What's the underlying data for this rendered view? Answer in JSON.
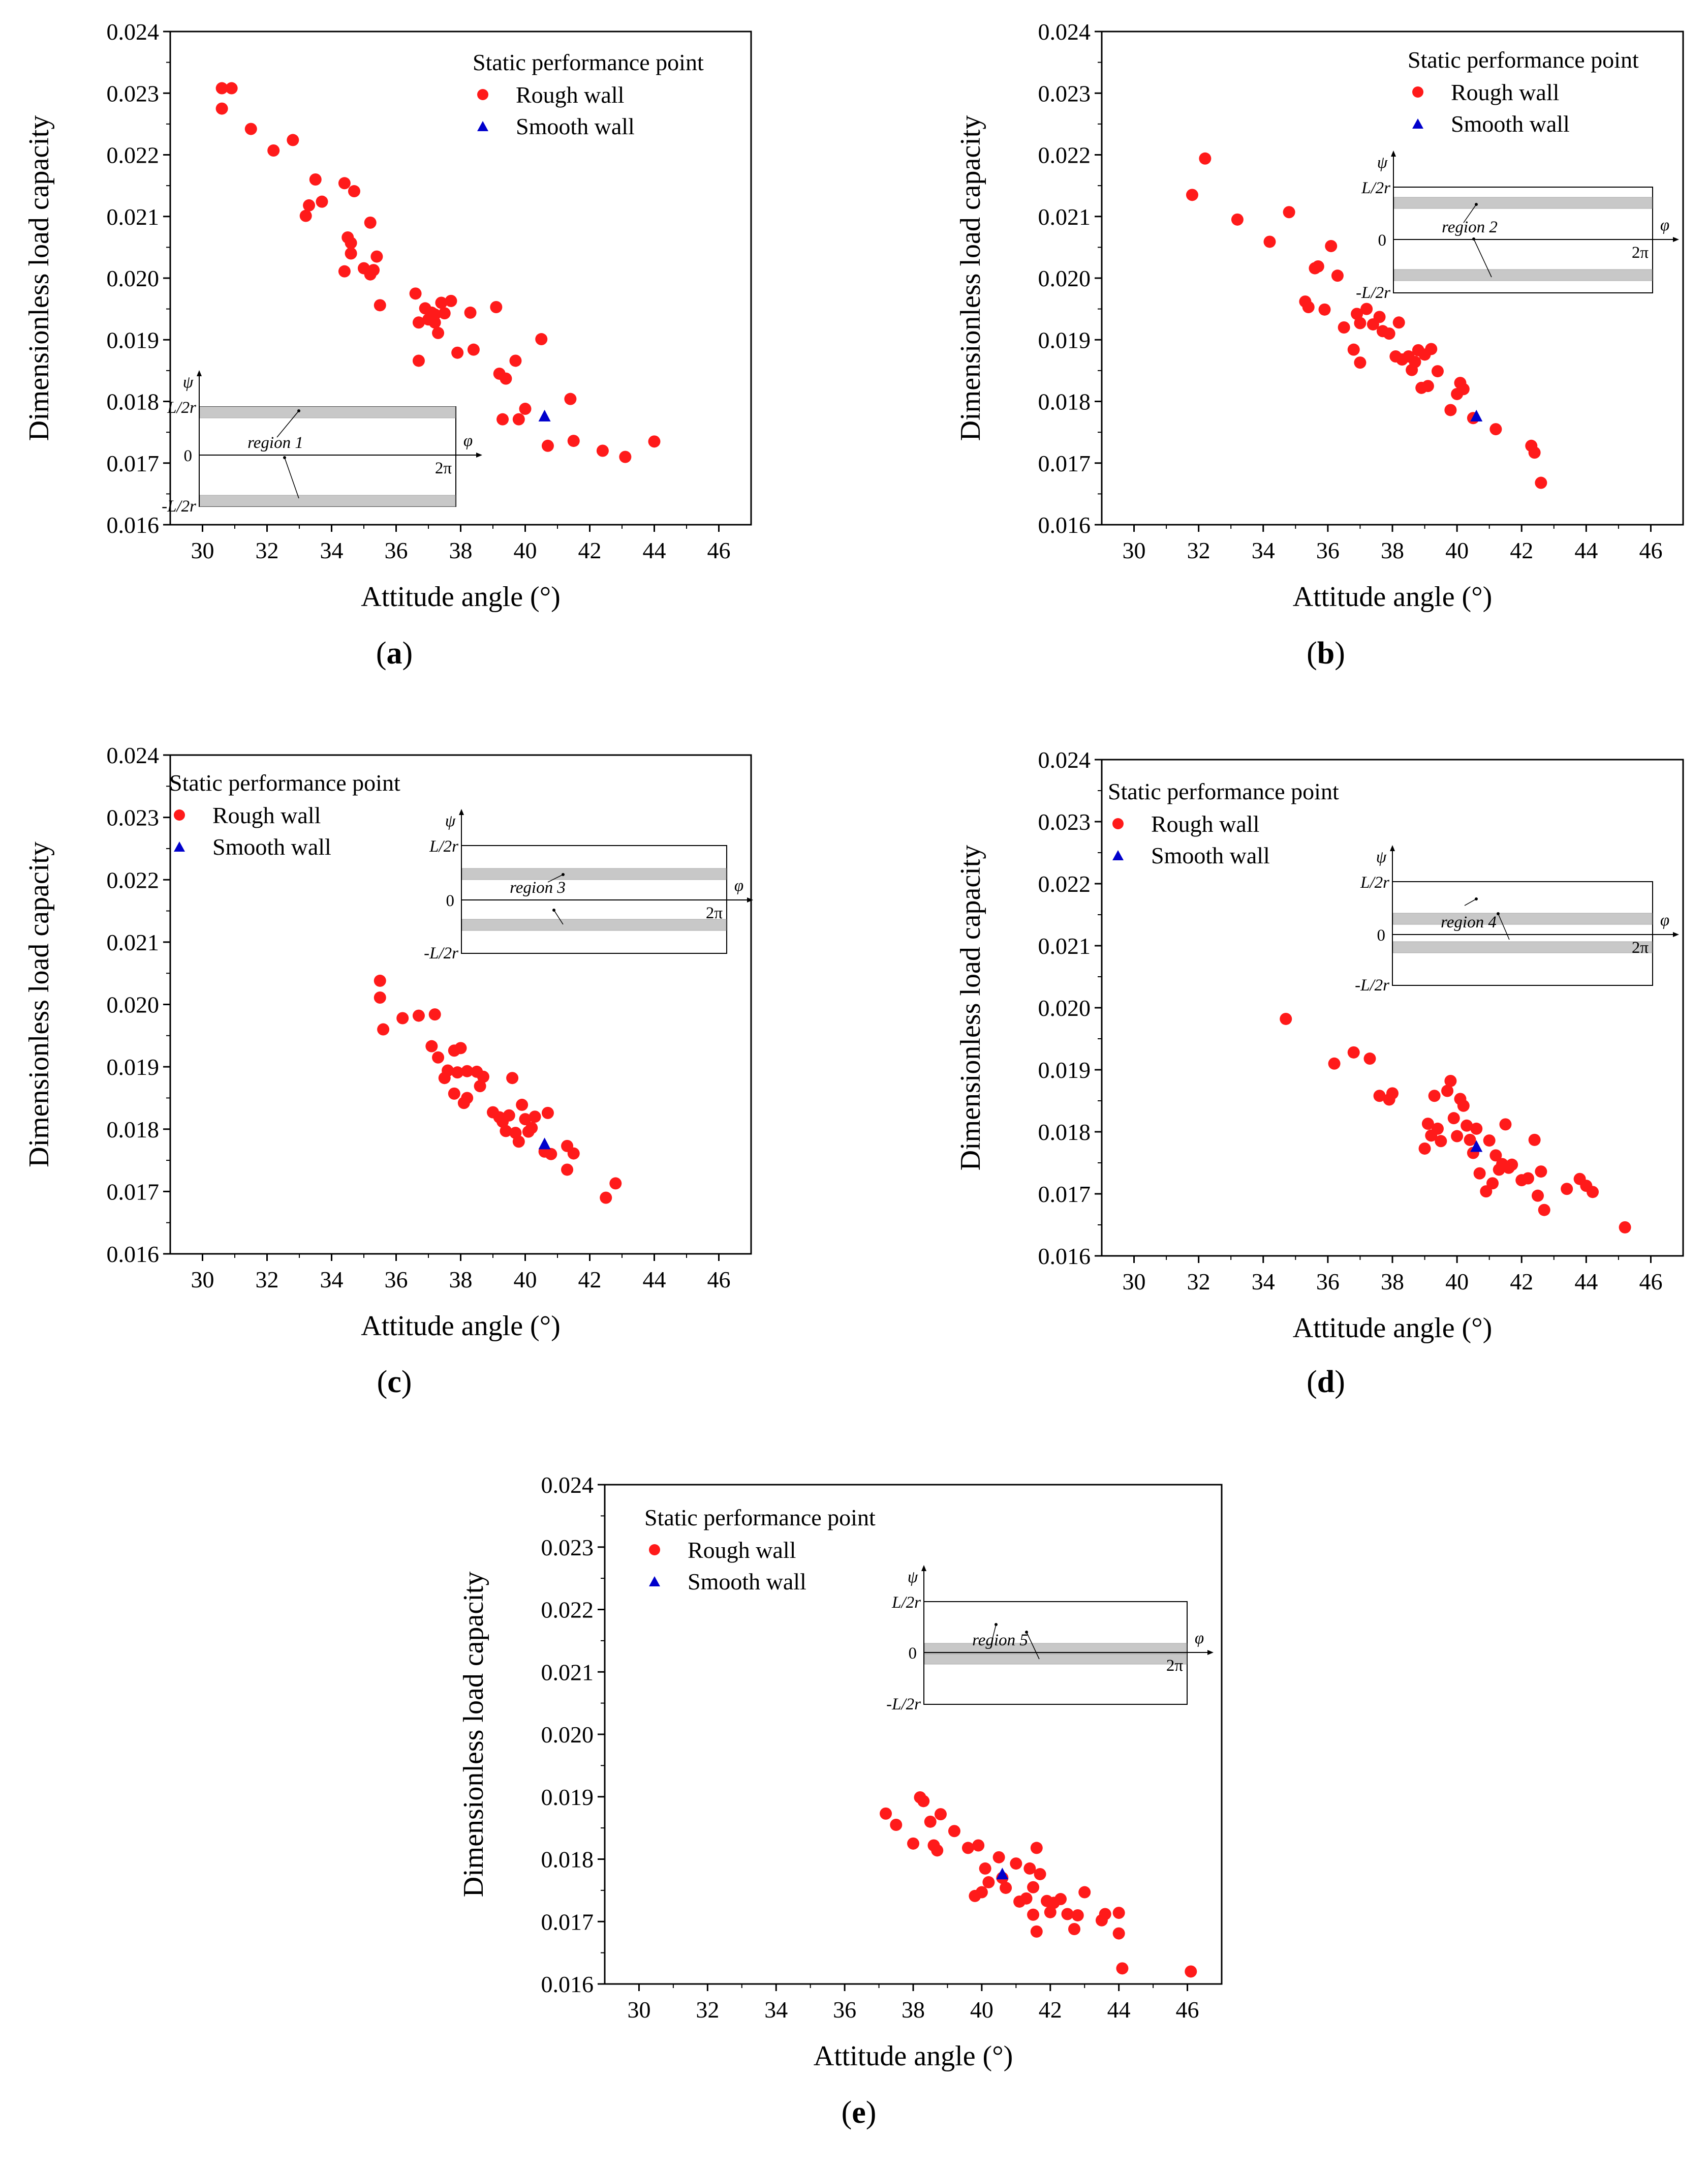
{
  "figure": {
    "xlabel": "Attitude angle (°)",
    "ylabel": "Dimensionless load capacity",
    "xticks": [
      30,
      32,
      34,
      36,
      38,
      40,
      42,
      44,
      46
    ],
    "yticks": [
      "0.016",
      "0.017",
      "0.018",
      "0.019",
      "0.020",
      "0.021",
      "0.022",
      "0.023",
      "0.024"
    ],
    "legend": {
      "title": "Static performance point",
      "rough": "Rough wall",
      "smooth": "Smooth wall"
    },
    "inset_labels": {
      "psi": "ψ",
      "phi": "φ",
      "top": "L/2r",
      "zero": "0",
      "bottom": "-L/2r",
      "two_pi": "2π"
    },
    "colors": {
      "rough": "#ff1a1a",
      "smooth": "#0000cc",
      "band": "#c8c8c8",
      "axis": "#000000"
    }
  },
  "chart_data": [
    {
      "type": "scatter",
      "panel": "(a)",
      "sublabel_letter": "a",
      "region_label": "region 1",
      "xlim": [
        29,
        47
      ],
      "ylim": [
        0.016,
        0.024
      ],
      "series": [
        {
          "name": "Rough wall",
          "points": [
            [
              30.6,
              0.02308
            ],
            [
              30.6,
              0.02275
            ],
            [
              30.9,
              0.02308
            ],
            [
              31.5,
              0.02242
            ],
            [
              32.2,
              0.02207
            ],
            [
              32.8,
              0.02224
            ],
            [
              33.2,
              0.02101
            ],
            [
              33.3,
              0.02118
            ],
            [
              33.5,
              0.0216
            ],
            [
              33.7,
              0.02124
            ],
            [
              34.4,
              0.02154
            ],
            [
              34.4,
              0.02011
            ],
            [
              34.5,
              0.02066
            ],
            [
              34.6,
              0.0204
            ],
            [
              34.6,
              0.02057
            ],
            [
              34.7,
              0.02141
            ],
            [
              35.0,
              0.02016
            ],
            [
              35.2,
              0.0209
            ],
            [
              35.2,
              0.02006
            ],
            [
              35.3,
              0.02013
            ],
            [
              35.4,
              0.02035
            ],
            [
              35.5,
              0.01956
            ],
            [
              36.6,
              0.01975
            ],
            [
              36.7,
              0.01928
            ],
            [
              36.7,
              0.01866
            ],
            [
              36.9,
              0.01951
            ],
            [
              37.0,
              0.01933
            ],
            [
              37.1,
              0.01944
            ],
            [
              37.2,
              0.01941
            ],
            [
              37.2,
              0.01928
            ],
            [
              37.3,
              0.01911
            ],
            [
              37.4,
              0.0196
            ],
            [
              37.5,
              0.01943
            ],
            [
              37.7,
              0.01963
            ],
            [
              37.9,
              0.01879
            ],
            [
              38.3,
              0.01944
            ],
            [
              38.4,
              0.01884
            ],
            [
              39.1,
              0.01953
            ],
            [
              39.2,
              0.01845
            ],
            [
              39.3,
              0.01771
            ],
            [
              39.4,
              0.01837
            ],
            [
              39.7,
              0.01866
            ],
            [
              39.8,
              0.01771
            ],
            [
              40.0,
              0.01788
            ],
            [
              40.5,
              0.01901
            ],
            [
              40.7,
              0.01728
            ],
            [
              41.4,
              0.01804
            ],
            [
              41.5,
              0.01736
            ],
            [
              42.4,
              0.0172
            ],
            [
              43.1,
              0.0171
            ],
            [
              44.0,
              0.01735
            ]
          ]
        },
        {
          "name": "Smooth wall",
          "points": [
            [
              40.6,
              0.01775
            ]
          ]
        }
      ]
    },
    {
      "type": "scatter",
      "panel": "(b)",
      "sublabel_letter": "b",
      "region_label": "region 2",
      "xlim": [
        29,
        47
      ],
      "ylim": [
        0.016,
        0.024
      ],
      "series": [
        {
          "name": "Rough wall",
          "points": [
            [
              31.8,
              0.02135
            ],
            [
              32.2,
              0.02194
            ],
            [
              33.2,
              0.02095
            ],
            [
              34.2,
              0.02059
            ],
            [
              34.8,
              0.02107
            ],
            [
              35.3,
              0.01962
            ],
            [
              35.4,
              0.01953
            ],
            [
              35.6,
              0.02016
            ],
            [
              35.7,
              0.02019
            ],
            [
              35.9,
              0.01949
            ],
            [
              36.1,
              0.02052
            ],
            [
              36.3,
              0.02004
            ],
            [
              36.5,
              0.0192
            ],
            [
              36.8,
              0.01884
            ],
            [
              36.9,
              0.01942
            ],
            [
              37.0,
              0.01927
            ],
            [
              37.0,
              0.01863
            ],
            [
              37.2,
              0.0195
            ],
            [
              37.4,
              0.01925
            ],
            [
              37.6,
              0.01937
            ],
            [
              37.7,
              0.01914
            ],
            [
              37.9,
              0.0191
            ],
            [
              38.1,
              0.01873
            ],
            [
              38.2,
              0.01928
            ],
            [
              38.3,
              0.01868
            ],
            [
              38.5,
              0.01873
            ],
            [
              38.6,
              0.01851
            ],
            [
              38.7,
              0.01864
            ],
            [
              38.8,
              0.01883
            ],
            [
              38.9,
              0.01822
            ],
            [
              39.0,
              0.01876
            ],
            [
              39.1,
              0.01825
            ],
            [
              39.2,
              0.01885
            ],
            [
              39.4,
              0.01849
            ],
            [
              39.8,
              0.01786
            ],
            [
              40.0,
              0.01812
            ],
            [
              40.1,
              0.0183
            ],
            [
              40.2,
              0.0182
            ],
            [
              40.5,
              0.01773
            ],
            [
              41.2,
              0.01755
            ],
            [
              42.3,
              0.01728
            ],
            [
              42.4,
              0.01717
            ],
            [
              42.6,
              0.01668
            ]
          ]
        },
        {
          "name": "Smooth wall",
          "points": [
            [
              40.6,
              0.01775
            ]
          ]
        }
      ]
    },
    {
      "type": "scatter",
      "panel": "(c)",
      "sublabel_letter": "c",
      "region_label": "region 3",
      "xlim": [
        29,
        47
      ],
      "ylim": [
        0.016,
        0.024
      ],
      "series": [
        {
          "name": "Rough wall",
          "points": [
            [
              35.5,
              0.02038
            ],
            [
              35.5,
              0.02011
            ],
            [
              35.6,
              0.0196
            ],
            [
              36.2,
              0.01978
            ],
            [
              36.7,
              0.01982
            ],
            [
              37.1,
              0.01933
            ],
            [
              37.2,
              0.01984
            ],
            [
              37.3,
              0.01915
            ],
            [
              37.5,
              0.01882
            ],
            [
              37.6,
              0.01894
            ],
            [
              37.8,
              0.01926
            ],
            [
              37.8,
              0.01857
            ],
            [
              37.9,
              0.01891
            ],
            [
              38.0,
              0.0193
            ],
            [
              38.1,
              0.01842
            ],
            [
              38.2,
              0.0185
            ],
            [
              38.2,
              0.01893
            ],
            [
              38.5,
              0.01892
            ],
            [
              38.6,
              0.01869
            ],
            [
              38.7,
              0.01884
            ],
            [
              39.0,
              0.01827
            ],
            [
              39.2,
              0.01819
            ],
            [
              39.3,
              0.01812
            ],
            [
              39.4,
              0.01797
            ],
            [
              39.5,
              0.01822
            ],
            [
              39.6,
              0.01882
            ],
            [
              39.7,
              0.01794
            ],
            [
              39.8,
              0.0178
            ],
            [
              39.9,
              0.01839
            ],
            [
              40.0,
              0.01816
            ],
            [
              40.1,
              0.01796
            ],
            [
              40.2,
              0.01802
            ],
            [
              40.3,
              0.0182
            ],
            [
              40.6,
              0.01764
            ],
            [
              40.7,
              0.01826
            ],
            [
              40.8,
              0.0176
            ],
            [
              41.3,
              0.01735
            ],
            [
              41.3,
              0.01773
            ],
            [
              41.5,
              0.01761
            ],
            [
              42.5,
              0.0169
            ],
            [
              42.8,
              0.01713
            ]
          ]
        },
        {
          "name": "Smooth wall",
          "points": [
            [
              40.6,
              0.01775
            ]
          ]
        }
      ]
    },
    {
      "type": "scatter",
      "panel": "(d)",
      "sublabel_letter": "d",
      "region_label": "region 4",
      "xlim": [
        29,
        47
      ],
      "ylim": [
        0.016,
        0.024
      ],
      "series": [
        {
          "name": "Rough wall",
          "points": [
            [
              34.7,
              0.01982
            ],
            [
              36.2,
              0.0191
            ],
            [
              36.8,
              0.01928
            ],
            [
              37.3,
              0.01918
            ],
            [
              37.6,
              0.01858
            ],
            [
              37.9,
              0.01852
            ],
            [
              38.0,
              0.01862
            ],
            [
              39.0,
              0.01773
            ],
            [
              39.1,
              0.01813
            ],
            [
              39.2,
              0.01794
            ],
            [
              39.3,
              0.01858
            ],
            [
              39.4,
              0.01805
            ],
            [
              39.5,
              0.01785
            ],
            [
              39.7,
              0.01866
            ],
            [
              39.8,
              0.01882
            ],
            [
              39.9,
              0.01822
            ],
            [
              40.0,
              0.01793
            ],
            [
              40.1,
              0.01853
            ],
            [
              40.2,
              0.01842
            ],
            [
              40.3,
              0.0181
            ],
            [
              40.4,
              0.01787
            ],
            [
              40.5,
              0.01766
            ],
            [
              40.6,
              0.01805
            ],
            [
              40.7,
              0.01733
            ],
            [
              40.9,
              0.01704
            ],
            [
              41.0,
              0.01786
            ],
            [
              41.1,
              0.01717
            ],
            [
              41.2,
              0.01762
            ],
            [
              41.3,
              0.01739
            ],
            [
              41.4,
              0.01748
            ],
            [
              41.5,
              0.01812
            ],
            [
              41.6,
              0.01742
            ],
            [
              41.7,
              0.01747
            ],
            [
              42.0,
              0.01722
            ],
            [
              42.2,
              0.01725
            ],
            [
              42.4,
              0.01787
            ],
            [
              42.5,
              0.01697
            ],
            [
              42.6,
              0.01736
            ],
            [
              42.7,
              0.01674
            ],
            [
              43.4,
              0.01708
            ],
            [
              43.8,
              0.01724
            ],
            [
              44.0,
              0.01713
            ],
            [
              44.2,
              0.01703
            ],
            [
              45.2,
              0.01646
            ]
          ]
        },
        {
          "name": "Smooth wall",
          "points": [
            [
              40.6,
              0.01775
            ]
          ]
        }
      ]
    },
    {
      "type": "scatter",
      "panel": "(e)",
      "sublabel_letter": "e",
      "region_label": "region 5",
      "xlim": [
        29,
        47
      ],
      "ylim": [
        0.016,
        0.024
      ],
      "series": [
        {
          "name": "Rough wall",
          "points": [
            [
              37.2,
              0.01873
            ],
            [
              37.5,
              0.01855
            ],
            [
              38.0,
              0.01825
            ],
            [
              38.2,
              0.01899
            ],
            [
              38.3,
              0.01893
            ],
            [
              38.5,
              0.0186
            ],
            [
              38.6,
              0.01822
            ],
            [
              38.7,
              0.01814
            ],
            [
              38.8,
              0.01872
            ],
            [
              39.2,
              0.01845
            ],
            [
              39.6,
              0.01818
            ],
            [
              39.8,
              0.01741
            ],
            [
              39.9,
              0.01822
            ],
            [
              40.0,
              0.01747
            ],
            [
              40.1,
              0.01785
            ],
            [
              40.2,
              0.01763
            ],
            [
              40.5,
              0.01803
            ],
            [
              40.6,
              0.0177
            ],
            [
              40.7,
              0.01754
            ],
            [
              41.0,
              0.01793
            ],
            [
              41.1,
              0.01732
            ],
            [
              41.3,
              0.01737
            ],
            [
              41.4,
              0.01785
            ],
            [
              41.5,
              0.01755
            ],
            [
              41.5,
              0.01711
            ],
            [
              41.6,
              0.01818
            ],
            [
              41.6,
              0.01684
            ],
            [
              41.7,
              0.01776
            ],
            [
              41.9,
              0.01733
            ],
            [
              42.0,
              0.01715
            ],
            [
              42.1,
              0.0173
            ],
            [
              42.3,
              0.01736
            ],
            [
              42.5,
              0.01712
            ],
            [
              42.7,
              0.01688
            ],
            [
              42.8,
              0.0171
            ],
            [
              43.0,
              0.01747
            ],
            [
              43.5,
              0.01702
            ],
            [
              43.6,
              0.01712
            ],
            [
              44.0,
              0.01714
            ],
            [
              44.0,
              0.01681
            ],
            [
              44.1,
              0.01625
            ],
            [
              46.1,
              0.0162
            ]
          ]
        },
        {
          "name": "Smooth wall",
          "points": [
            [
              40.6,
              0.01775
            ]
          ]
        }
      ]
    }
  ]
}
